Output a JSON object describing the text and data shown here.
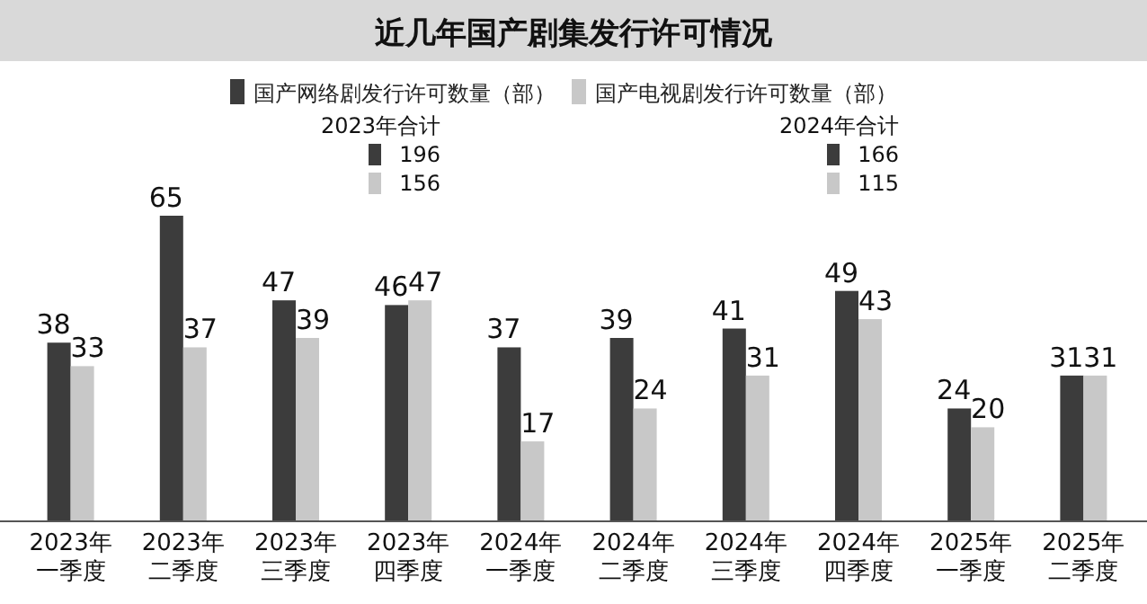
{
  "chart_data": {
    "type": "bar",
    "title": "近几年国产剧集发行许可情况",
    "categories": [
      "2023年一季度",
      "2023年二季度",
      "2023年三季度",
      "2023年四季度",
      "2024年一季度",
      "2024年二季度",
      "2024年三季度",
      "2024年四季度",
      "2025年一季度",
      "2025年二季度"
    ],
    "series": [
      {
        "name": "国产网络剧发行许可数量（部）",
        "color": "#3c3c3c",
        "values": [
          38,
          65,
          47,
          46,
          37,
          39,
          41,
          49,
          24,
          31
        ]
      },
      {
        "name": "国产电视剧发行许可数量（部）",
        "color": "#c8c8c8",
        "values": [
          33,
          37,
          39,
          47,
          17,
          24,
          31,
          43,
          20,
          31
        ]
      }
    ],
    "annotations": [
      "2023年合计",
      "196",
      "156",
      "2024年合计",
      "166",
      "115"
    ],
    "data_labels": true,
    "legend": "top",
    "grid": false
  }
}
